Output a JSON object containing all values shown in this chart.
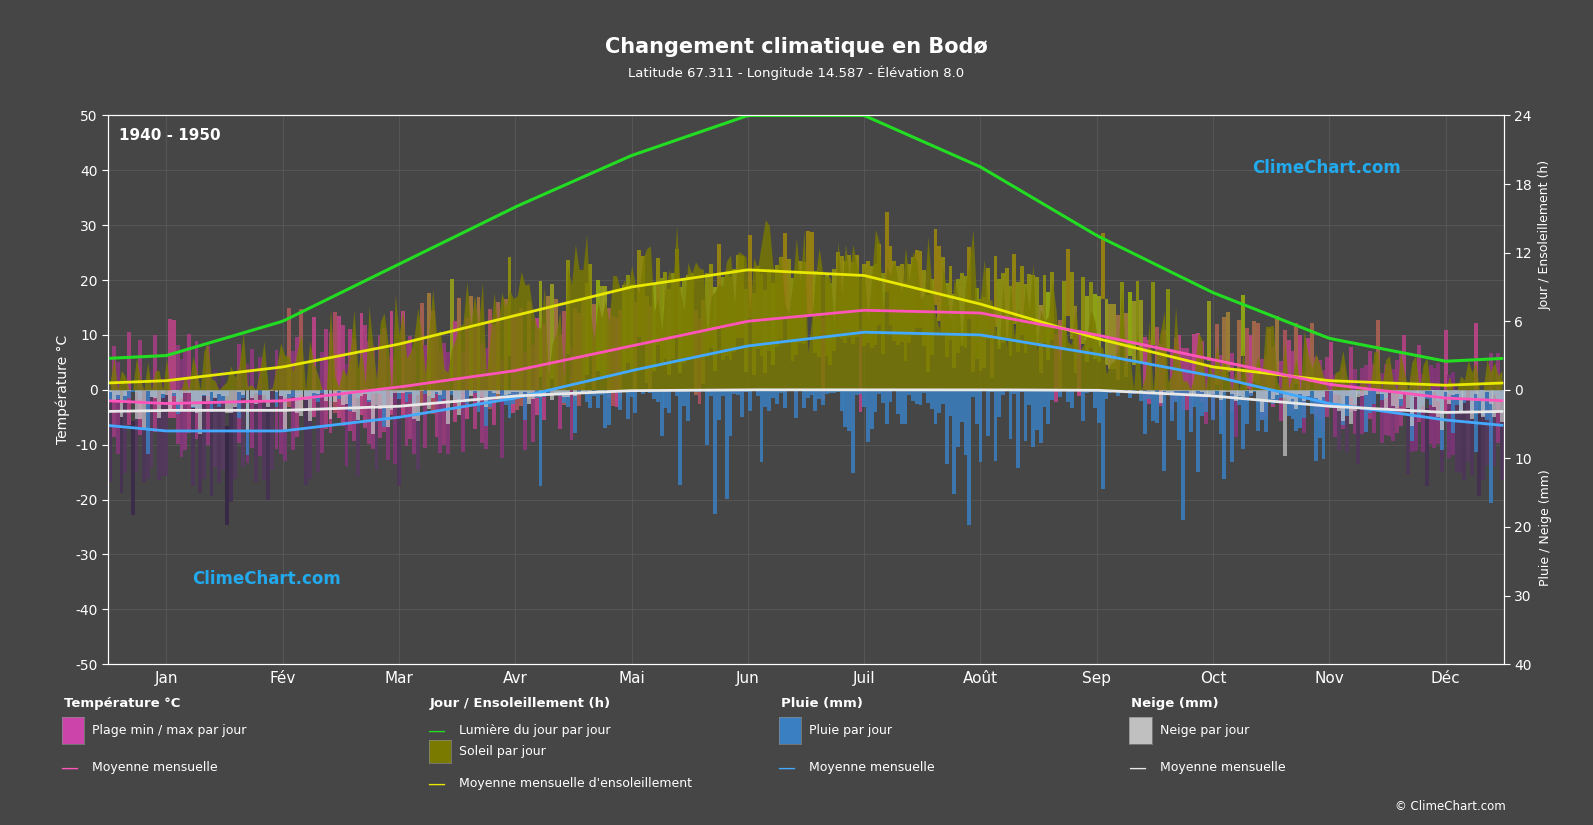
{
  "title": "Changement climatique en Bodø",
  "subtitle": "Latitude 67.311 - Longitude 14.587 - Élévation 8.0",
  "period": "1940 - 1950",
  "background_color": "#464646",
  "text_color": "#ffffff",
  "grid_color": "#5a5a5a",
  "months": [
    "Jan",
    "Fév",
    "Mar",
    "Avr",
    "Mai",
    "Jun",
    "Juil",
    "Août",
    "Sep",
    "Oct",
    "Nov",
    "Déc"
  ],
  "month_centers": [
    0.5,
    1.5,
    2.5,
    3.5,
    4.5,
    5.5,
    6.5,
    7.5,
    8.5,
    9.5,
    10.5,
    11.5
  ],
  "days_per_month": [
    31,
    28,
    31,
    30,
    31,
    30,
    31,
    31,
    30,
    31,
    30,
    31
  ],
  "mean_temp": [
    -2.5,
    -2.0,
    0.5,
    3.5,
    8.0,
    12.5,
    14.5,
    14.0,
    10.0,
    5.5,
    1.0,
    -1.5
  ],
  "mean_temp_min": [
    -7.5,
    -7.5,
    -5.0,
    -1.5,
    3.5,
    8.0,
    10.5,
    10.0,
    6.5,
    2.5,
    -2.5,
    -5.5
  ],
  "daily_tmin_base": [
    -14,
    -13,
    -9,
    -4,
    2,
    7,
    9,
    9,
    5,
    0,
    -5,
    -11
  ],
  "daily_tmax_base": [
    4,
    5,
    10,
    14,
    18,
    22,
    24,
    22,
    17,
    11,
    6,
    4
  ],
  "daylight_hours": [
    3.0,
    6.0,
    11.0,
    16.0,
    20.5,
    24.0,
    24.0,
    19.5,
    13.5,
    8.5,
    4.5,
    2.5
  ],
  "sunshine_hours": [
    0.8,
    2.0,
    4.0,
    6.5,
    9.0,
    10.5,
    10.0,
    7.5,
    4.5,
    2.0,
    0.8,
    0.4
  ],
  "rain_mm": [
    3.0,
    2.5,
    2.5,
    3.0,
    3.5,
    5.0,
    5.5,
    6.0,
    5.5,
    5.0,
    4.0,
    3.5
  ],
  "snow_mm": [
    5.0,
    5.0,
    4.0,
    1.5,
    0.2,
    0.0,
    0.0,
    0.0,
    0.1,
    1.5,
    4.0,
    5.5
  ],
  "temp_ylim": [
    -50,
    50
  ],
  "sun_scale_max": 24,
  "precip_scale_max": 40,
  "ylabel_left": "Température °C",
  "ylabel_right_top": "Jour / Ensoleillement (h)",
  "ylabel_right_bottom": "Pluie / Neige (mm)",
  "legend_temp_title": "Température °C",
  "legend_sun_title": "Jour / Ensoleillement (h)",
  "legend_rain_title": "Pluie (mm)",
  "legend_snow_title": "Neige (mm)",
  "legend_plage": "Plage min / max par jour",
  "legend_mean_temp": "Moyenne mensuelle",
  "legend_lumiere": "Lumière du jour par jour",
  "legend_soleil": "Soleil par jour",
  "legend_mean_sun": "Moyenne mensuelle d'ensoleillement",
  "legend_pluie_jour": "Pluie par jour",
  "legend_mean_rain": "Moyenne mensuelle",
  "legend_neige_jour": "Neige par jour",
  "legend_mean_snow": "Moyenne mensuelle",
  "logo": "ClimeChart.com",
  "copyright": "© ClimeChart.com"
}
